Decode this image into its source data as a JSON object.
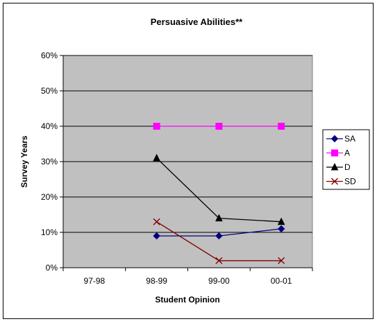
{
  "chart_data": {
    "type": "line",
    "title": "Persuasive Abilities**",
    "xlabel": "Student Opinion",
    "ylabel": "Survey Years",
    "categories": [
      "97-98",
      "98-99",
      "99-00",
      "00-01"
    ],
    "ylim": [
      0,
      60
    ],
    "yticks": [
      0,
      10,
      20,
      30,
      40,
      50,
      60
    ],
    "ytick_labels": [
      "0%",
      "10%",
      "20%",
      "30%",
      "40%",
      "50%",
      "60%"
    ],
    "grid": true,
    "legend_position": "right",
    "plot_background": "#c0c0c0",
    "series": [
      {
        "name": "SA",
        "values": [
          null,
          9,
          9,
          11
        ],
        "color": "#000080",
        "marker": "diamond"
      },
      {
        "name": "A",
        "values": [
          null,
          40,
          40,
          40
        ],
        "color": "#ff00ff",
        "marker": "square"
      },
      {
        "name": "D",
        "values": [
          null,
          31,
          14,
          13
        ],
        "color": "#000000",
        "marker": "triangle"
      },
      {
        "name": "SD",
        "values": [
          null,
          13,
          2,
          2
        ],
        "color": "#800000",
        "marker": "x"
      }
    ]
  }
}
